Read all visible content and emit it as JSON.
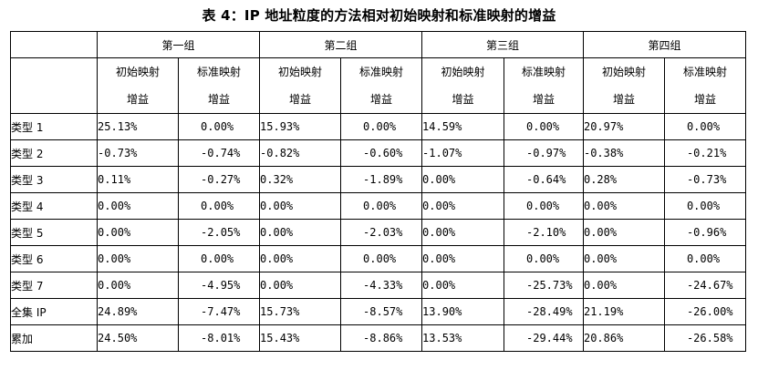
{
  "caption": "表 4：IP 地址粒度的方法相对初始映射和标准映射的增益",
  "groups": [
    "第一组",
    "第二组",
    "第三组",
    "第四组"
  ],
  "sub_headers": [
    {
      "line1": "初始映射",
      "line2": "增益"
    },
    {
      "line1": "标准映射",
      "line2": "增益"
    }
  ],
  "rows": [
    {
      "label": "类型 1",
      "values": [
        "25.13%",
        "0.00%",
        "15.93%",
        "0.00%",
        "14.59%",
        "0.00%",
        "20.97%",
        "0.00%"
      ]
    },
    {
      "label": "类型 2",
      "values": [
        "-0.73%",
        "-0.74%",
        "-0.82%",
        "-0.60%",
        "-1.07%",
        "-0.97%",
        "-0.38%",
        "-0.21%"
      ]
    },
    {
      "label": "类型 3",
      "values": [
        "0.11%",
        "-0.27%",
        "0.32%",
        "-1.89%",
        "0.00%",
        "-0.64%",
        "0.28%",
        "-0.73%"
      ]
    },
    {
      "label": "类型 4",
      "values": [
        "0.00%",
        "0.00%",
        "0.00%",
        "0.00%",
        "0.00%",
        "0.00%",
        "0.00%",
        "0.00%"
      ]
    },
    {
      "label": "类型 5",
      "values": [
        "0.00%",
        "-2.05%",
        "0.00%",
        "-2.03%",
        "0.00%",
        "-2.10%",
        "0.00%",
        "-0.96%"
      ]
    },
    {
      "label": "类型 6",
      "values": [
        "0.00%",
        "0.00%",
        "0.00%",
        "0.00%",
        "0.00%",
        "0.00%",
        "0.00%",
        "0.00%"
      ]
    },
    {
      "label": "类型 7",
      "values": [
        "0.00%",
        "-4.95%",
        "0.00%",
        "-4.33%",
        "0.00%",
        "-25.73%",
        "0.00%",
        "-24.67%"
      ]
    },
    {
      "label": "全集 IP",
      "values": [
        "24.89%",
        "-7.47%",
        "15.73%",
        "-8.57%",
        "13.90%",
        "-28.49%",
        "21.19%",
        "-26.00%"
      ]
    },
    {
      "label": "累加",
      "values": [
        "24.50%",
        "-8.01%",
        "15.43%",
        "-8.86%",
        "13.53%",
        "-29.44%",
        "20.86%",
        "-26.58%"
      ]
    }
  ]
}
